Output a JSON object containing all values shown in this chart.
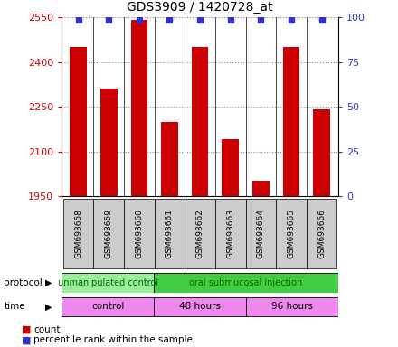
{
  "title": "GDS3909 / 1420728_at",
  "samples": [
    "GSM693658",
    "GSM693659",
    "GSM693660",
    "GSM693661",
    "GSM693662",
    "GSM693663",
    "GSM693664",
    "GSM693665",
    "GSM693666"
  ],
  "counts": [
    2450,
    2310,
    2540,
    2200,
    2450,
    2140,
    2000,
    2450,
    2240
  ],
  "y_min": 1950,
  "y_max": 2550,
  "y_ticks": [
    1950,
    2100,
    2250,
    2400,
    2550
  ],
  "y2_ticks": [
    0,
    25,
    50,
    75,
    100
  ],
  "bar_color": "#cc0000",
  "dot_color": "#3333cc",
  "protocol_groups": [
    {
      "label": "unmanipulated control",
      "start": 0,
      "end": 3,
      "color": "#99ee99"
    },
    {
      "label": "oral submucosal injection",
      "start": 3,
      "end": 9,
      "color": "#44cc44"
    }
  ],
  "time_labels": [
    "control",
    "48 hours",
    "96 hours"
  ],
  "time_starts": [
    0,
    3,
    6
  ],
  "time_ends": [
    3,
    6,
    9
  ],
  "time_color": "#ee88ee",
  "grid_color": "#888888",
  "bg_color": "#ffffff",
  "label_color_left": "#cc0000",
  "label_color_right": "#3333cc",
  "sample_box_color": "#cccccc"
}
